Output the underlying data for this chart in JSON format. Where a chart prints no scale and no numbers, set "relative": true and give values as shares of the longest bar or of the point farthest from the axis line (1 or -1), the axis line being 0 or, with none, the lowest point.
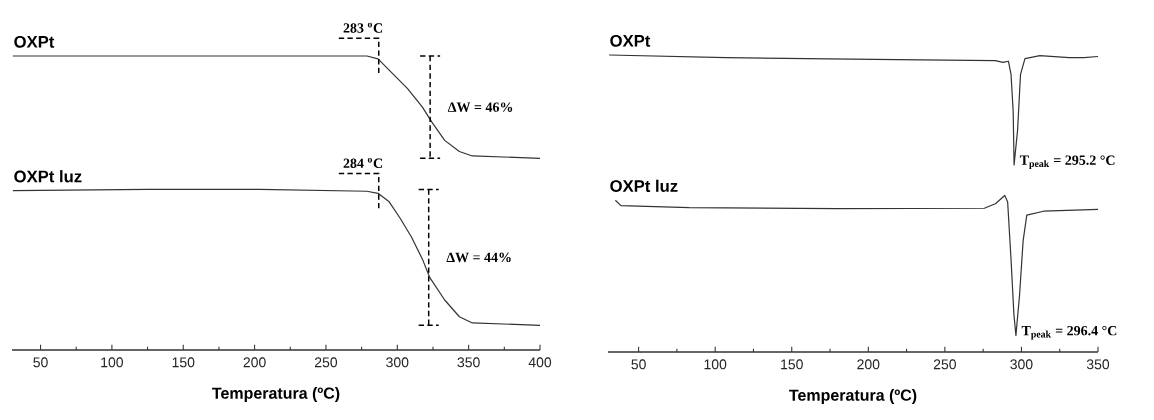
{
  "chart_data": [
    {
      "type": "line",
      "xlabel": "Temperatura (ºC)",
      "relative": true,
      "xlim": [
        30,
        400
      ],
      "xticks": [
        50,
        100,
        150,
        200,
        250,
        300,
        350,
        400
      ],
      "legend": false,
      "marker": "none",
      "line_style": "solid",
      "series": [
        {
          "name": "OXPt",
          "color": "#333333",
          "x": [
            30.6,
            125.7,
            203.5,
            278.7,
            286.5,
            294.3,
            307.2,
            317.6,
            324.1,
            333.2,
            343.5,
            352.6,
            400
          ],
          "values": [
            1.0,
            1.0,
            1.0,
            1.0,
            0.99,
            0.952,
            0.889,
            0.826,
            0.776,
            0.713,
            0.675,
            0.66,
            0.652
          ]
        },
        {
          "name": "OXPt luz",
          "color": "#333333",
          "x": [
            30.6,
            125.7,
            203.5,
            278.7,
            286.5,
            294.3,
            302.0,
            309.8,
            317.6,
            322.8,
            333.2,
            343.5,
            352.6,
            400
          ],
          "values": [
            0.542,
            0.546,
            0.546,
            0.54,
            0.533,
            0.504,
            0.448,
            0.385,
            0.309,
            0.246,
            0.17,
            0.113,
            0.092,
            0.084
          ]
        }
      ],
      "annotations": [
        {
          "text": "283 $^{o}$C",
          "x": 287,
          "y": 1.0
        },
        {
          "text": "ΔW = 46%",
          "x": 323,
          "y": 0.785
        },
        {
          "text": "284 $^{o}$C",
          "x": 287,
          "y": 0.54
        },
        {
          "text": "ΔW = 44%",
          "x": 322,
          "y": 0.256
        }
      ]
    },
    {
      "type": "line",
      "xlabel": "Temperatura (ºC)",
      "relative": true,
      "xlim": [
        30,
        350
      ],
      "xticks": [
        50,
        100,
        150,
        200,
        250,
        300,
        350
      ],
      "legend": false,
      "marker": "none",
      "line_style": "solid",
      "series": [
        {
          "name": "OXPt",
          "color": "#333333",
          "x": [
            30.7,
            107.1,
            203.5,
            283.0,
            287.9,
            291.5,
            293.2,
            294.6,
            295.2,
            297.5,
            299.4,
            302.3,
            312.0,
            331.2,
            340.9,
            350
          ],
          "values": [
            1.0,
            0.991,
            0.985,
            0.981,
            0.975,
            0.979,
            0.935,
            0.81,
            0.63,
            0.748,
            0.935,
            0.988,
            0.998,
            0.991,
            0.991,
            0.995
          ]
        },
        {
          "name": "OXPt luz",
          "color": "#333333",
          "x": [
            34.8,
            38.4,
            83.0,
            179.4,
            275.8,
            283.0,
            289.1,
            291.0,
            293.2,
            295.1,
            296.4,
            298.7,
            301.1,
            303.5,
            314.4,
            350
          ],
          "values": [
            0.511,
            0.493,
            0.486,
            0.483,
            0.484,
            0.499,
            0.527,
            0.505,
            0.312,
            0.125,
            0.056,
            0.187,
            0.374,
            0.461,
            0.474,
            0.48
          ]
        }
      ],
      "annotations": [
        {
          "text": "T$_{peak}$ = 295.2 °C",
          "x": 295.2,
          "y": 0.63
        },
        {
          "text": "T$_{peak}$ = 296.4 °C",
          "x": 296.4,
          "y": 0.056
        }
      ]
    }
  ]
}
